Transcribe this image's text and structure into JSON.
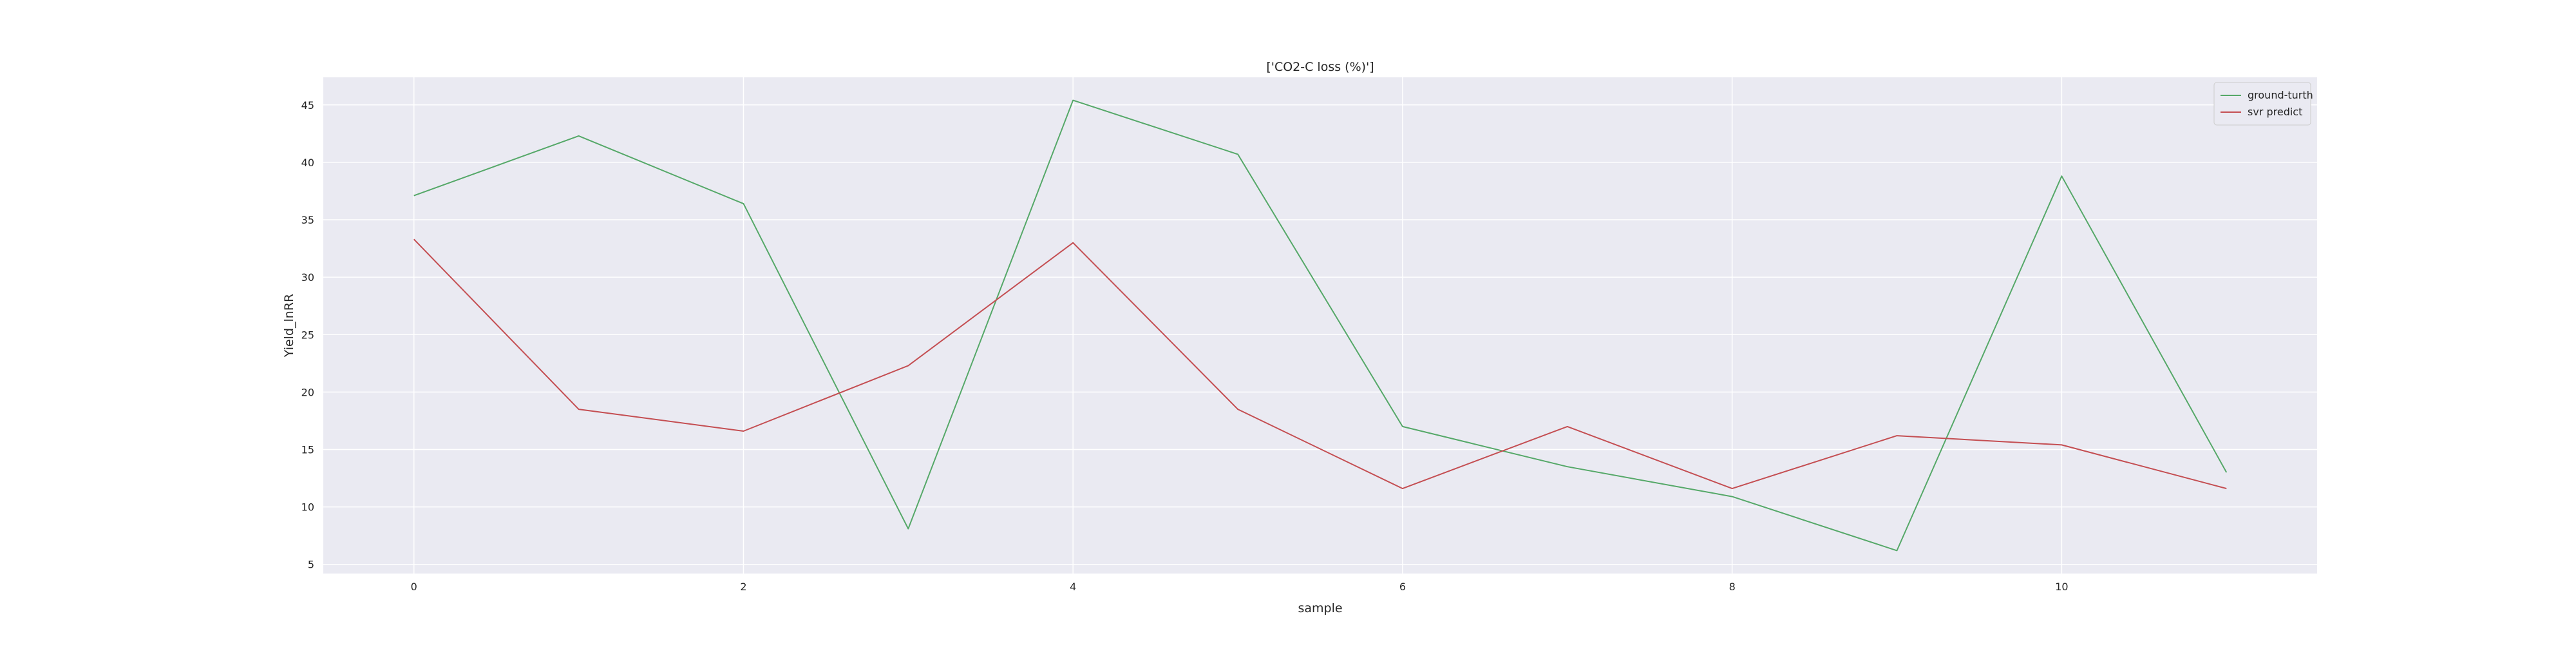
{
  "chart_data": {
    "type": "line",
    "title": "['CO2-C loss (%)']",
    "xlabel": "sample",
    "ylabel": "Yield_lnRR",
    "x": [
      0,
      1,
      2,
      3,
      4,
      5,
      6,
      7,
      8,
      9,
      10,
      11
    ],
    "series": [
      {
        "name": "ground-turth",
        "color": "#55a868",
        "values": [
          37.1,
          42.3,
          36.4,
          8.1,
          45.4,
          40.7,
          17.0,
          13.5,
          10.9,
          6.2,
          38.8,
          13.0
        ]
      },
      {
        "name": "svr predict",
        "color": "#c44e52",
        "values": [
          33.3,
          18.5,
          16.6,
          22.3,
          33.0,
          18.5,
          11.6,
          17.0,
          11.6,
          16.2,
          15.4,
          11.6
        ]
      }
    ],
    "xticks": [
      0,
      2,
      4,
      6,
      8,
      10
    ],
    "yticks": [
      5,
      10,
      15,
      20,
      25,
      30,
      35,
      40,
      45
    ],
    "xlim": [
      -0.55,
      11.55
    ],
    "ylim": [
      4.2,
      47.4
    ],
    "grid": true,
    "legend_position": "top-right",
    "colors": {
      "plot_background": "#eaeaf2",
      "grid": "#ffffff"
    }
  }
}
